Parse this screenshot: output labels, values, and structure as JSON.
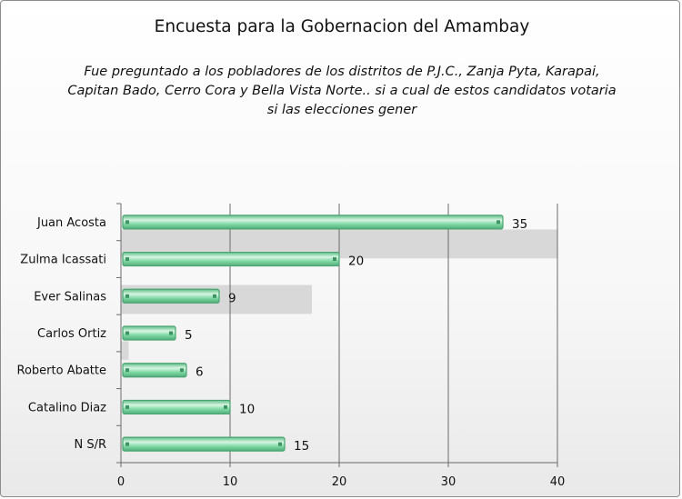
{
  "chart_data": {
    "type": "bar",
    "orientation": "horizontal",
    "title": "Encuesta para la Gobernacion del Amambay",
    "subtitle": "Fue preguntado a los pobladores de los distritos de P.J.C., Zanja Pyta, Karapai, Capitan Bado, Cerro Cora y Bella Vista Norte.. si a cual de estos candidatos votaria si las elecciones gener",
    "categories": [
      "Juan Acosta",
      "Zulma Icassati",
      "Ever Salinas",
      "Carlos Ortiz",
      "Roberto Abatte",
      "Catalino Diaz",
      "N S/R"
    ],
    "values": [
      35,
      20,
      9,
      5,
      6,
      10,
      15
    ],
    "xlim": [
      0,
      40
    ],
    "xticks": [
      0,
      10,
      20,
      30,
      40
    ],
    "grid": true,
    "legend": "none",
    "colors": {
      "bar": "#7fd9a4",
      "bar_edge": "#4aa372",
      "bar_highlight": "#d8f5e3",
      "grid": "#6b6b6b",
      "shadow_band": "#d8d8d8"
    }
  }
}
